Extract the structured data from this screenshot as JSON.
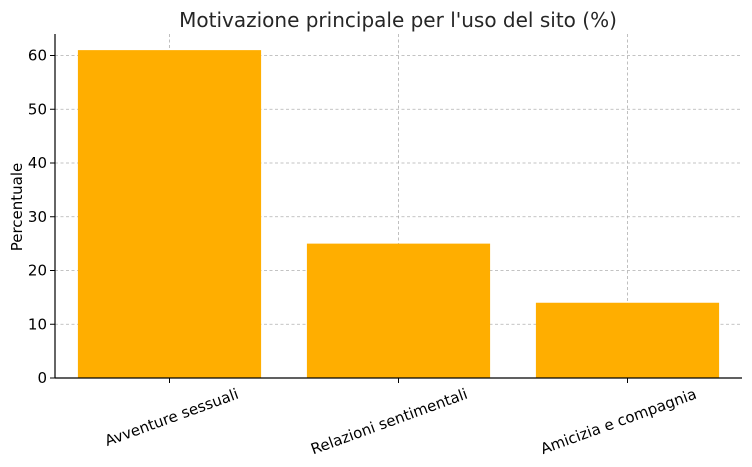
{
  "chart_data": {
    "type": "bar",
    "title": "Motivazione principale per l'uso del sito (%)",
    "xlabel": "",
    "ylabel": "Percentuale",
    "categories": [
      "Avventure sessuali",
      "Relazioni sentimentali",
      "Amicizia e compagnia"
    ],
    "values": [
      61,
      25,
      14
    ],
    "ylim": [
      0,
      64
    ],
    "yticks": [
      "0",
      "10",
      "20",
      "30",
      "40",
      "50",
      "60"
    ],
    "bar_color": "#FFAE00",
    "grid": true,
    "legend": "none"
  }
}
